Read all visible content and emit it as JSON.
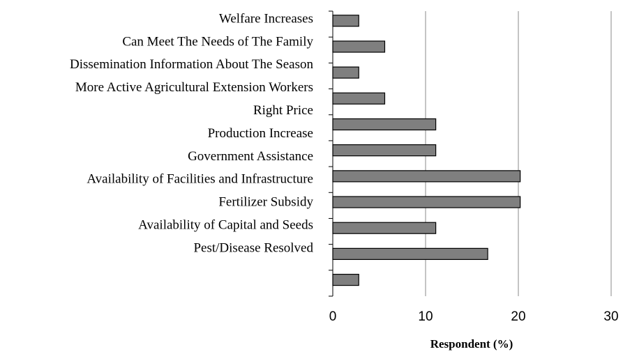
{
  "chart_data": {
    "type": "bar",
    "orientation": "horizontal",
    "x_label": "Respondent (%)",
    "categories": [
      "Welfare Increases",
      "Can Meet The Needs of The Family",
      "Dissemination Information About The Season",
      "More Active Agricultural Extension Workers",
      "Right Price",
      "Production Increase",
      "Government Assistance",
      "Availability of Facilities and Infrastructure",
      "Fertilizer Subsidy",
      "Availability of Capital and Seeds",
      "Pest/Disease Resolved"
    ],
    "values": [
      2.8,
      5.6,
      2.8,
      5.6,
      11.1,
      11.1,
      20.2,
      20.2,
      11.1,
      16.7,
      2.8
    ],
    "color": "#7f7f7f",
    "xlim": [
      0,
      30
    ],
    "xticks": [
      0,
      10,
      20,
      30
    ],
    "grid": true
  }
}
